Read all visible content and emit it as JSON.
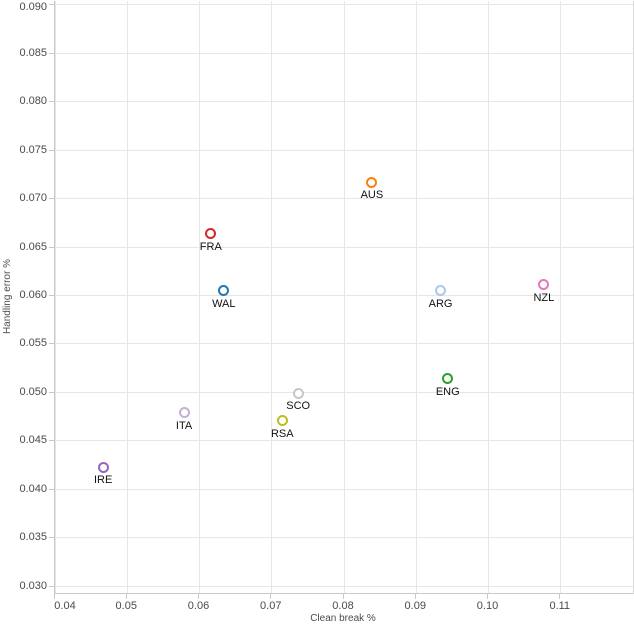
{
  "chart_data": {
    "type": "scatter",
    "title": "",
    "xlabel": "Clean break %",
    "ylabel": "Handling error %",
    "xlim": [
      0.04,
      0.12
    ],
    "ylim": [
      0.0293,
      0.0904
    ],
    "grid": true,
    "legend": false,
    "marker_style": "open-circle",
    "x_ticks": [
      {
        "value": 0.04,
        "label": "0.04"
      },
      {
        "value": 0.05,
        "label": "0.05"
      },
      {
        "value": 0.06,
        "label": "0.06"
      },
      {
        "value": 0.07,
        "label": "0.07"
      },
      {
        "value": 0.08,
        "label": "0.08"
      },
      {
        "value": 0.09,
        "label": "0.09"
      },
      {
        "value": 0.1,
        "label": "0.10"
      },
      {
        "value": 0.11,
        "label": "0.11"
      }
    ],
    "y_ticks": [
      {
        "value": 0.03,
        "label": "0.030"
      },
      {
        "value": 0.035,
        "label": "0.035"
      },
      {
        "value": 0.04,
        "label": "0.040"
      },
      {
        "value": 0.045,
        "label": "0.045"
      },
      {
        "value": 0.05,
        "label": "0.050"
      },
      {
        "value": 0.055,
        "label": "0.055"
      },
      {
        "value": 0.06,
        "label": "0.060"
      },
      {
        "value": 0.065,
        "label": "0.065"
      },
      {
        "value": 0.07,
        "label": "0.070"
      },
      {
        "value": 0.075,
        "label": "0.075"
      },
      {
        "value": 0.08,
        "label": "0.080"
      },
      {
        "value": 0.085,
        "label": "0.085"
      },
      {
        "value": 0.09,
        "label": "0.090"
      }
    ],
    "points": [
      {
        "label": "AUS",
        "x": 0.084,
        "y": 0.0717,
        "color": "#ff7f0e"
      },
      {
        "label": "FRA",
        "x": 0.0617,
        "y": 0.0664,
        "color": "#d62728"
      },
      {
        "label": "WAL",
        "x": 0.0635,
        "y": 0.0605,
        "color": "#1f77b4"
      },
      {
        "label": "ARG",
        "x": 0.0935,
        "y": 0.0605,
        "color": "#aec7e8"
      },
      {
        "label": "NZL",
        "x": 0.1078,
        "y": 0.0611,
        "color": "#e377c2"
      },
      {
        "label": "ENG",
        "x": 0.0945,
        "y": 0.0514,
        "color": "#2ca02c"
      },
      {
        "label": "SCO",
        "x": 0.0738,
        "y": 0.0499,
        "color": "#c7c7c7"
      },
      {
        "label": "RSA",
        "x": 0.0716,
        "y": 0.0471,
        "color": "#bcbd22"
      },
      {
        "label": "ITA",
        "x": 0.058,
        "y": 0.0479,
        "color": "#c5b0d5"
      },
      {
        "label": "IRE",
        "x": 0.0468,
        "y": 0.0423,
        "color": "#9467bd"
      }
    ],
    "colors": {
      "gridline": "#e6e6e6",
      "axis_line": "#c9c9c9",
      "tick_text": "#4a4a4a",
      "axis_title_text": "#4d4d4d",
      "point_label_text": "#111111",
      "background": "#ffffff"
    }
  }
}
